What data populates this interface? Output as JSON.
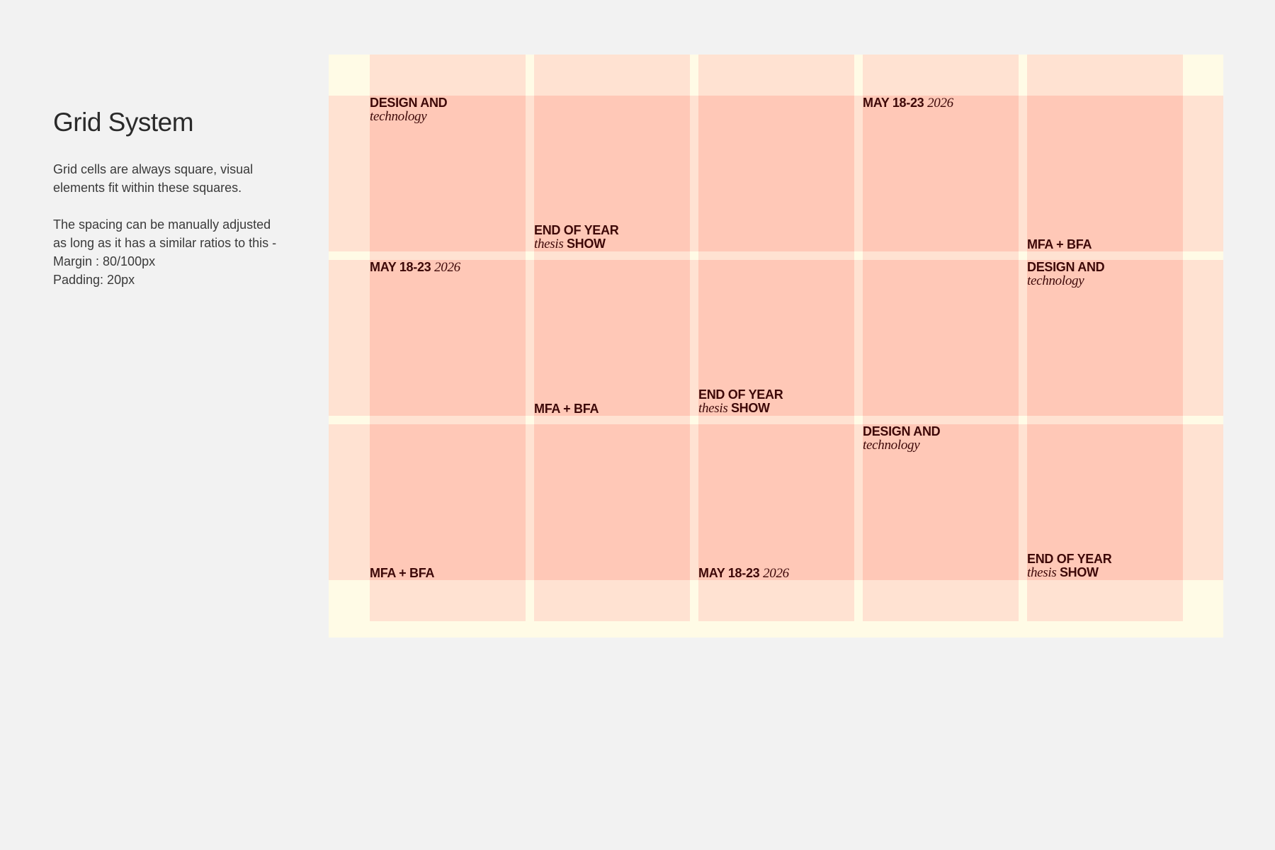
{
  "sidebar": {
    "title": "Grid System",
    "para1": "Grid cells are always square, visual elements fit within these squares.",
    "para2": "The spacing can be manually adjusted as long as it has a similar ratios to this -",
    "margin": "Margin : 80/100px",
    "padding": "Padding: 20px"
  },
  "labels": {
    "design_main": "DESIGN AND",
    "design_sub": "technology",
    "date_main": "MAY 18-23",
    "date_year": "2026",
    "eoy_main": "END OF YEAR",
    "eoy_it": "thesis",
    "eoy_show": "SHOW",
    "mfa": "MFA + BFA"
  },
  "grid": {
    "columns": 5,
    "rows": 3,
    "placements": [
      {
        "row": 0,
        "col": 0,
        "type": "design",
        "pos": "top"
      },
      {
        "row": 0,
        "col": 1,
        "type": "eoy",
        "pos": "bottom"
      },
      {
        "row": 0,
        "col": 3,
        "type": "date",
        "pos": "top"
      },
      {
        "row": 0,
        "col": 4,
        "type": "mfa",
        "pos": "bottom"
      },
      {
        "row": 1,
        "col": 0,
        "type": "date",
        "pos": "top"
      },
      {
        "row": 1,
        "col": 1,
        "type": "mfa",
        "pos": "bottom"
      },
      {
        "row": 1,
        "col": 2,
        "type": "eoy",
        "pos": "bottom"
      },
      {
        "row": 1,
        "col": 4,
        "type": "design",
        "pos": "top"
      },
      {
        "row": 2,
        "col": 0,
        "type": "mfa",
        "pos": "bottom"
      },
      {
        "row": 2,
        "col": 2,
        "type": "date",
        "pos": "bottom"
      },
      {
        "row": 2,
        "col": 3,
        "type": "design",
        "pos": "top"
      },
      {
        "row": 2,
        "col": 4,
        "type": "eoy",
        "pos": "bottom"
      }
    ]
  },
  "colors": {
    "background": "#f2f2f2",
    "board": "#fffbe6",
    "band": "#ffe2d2",
    "cell": "#ffc8b7",
    "text": "#3d0808"
  }
}
